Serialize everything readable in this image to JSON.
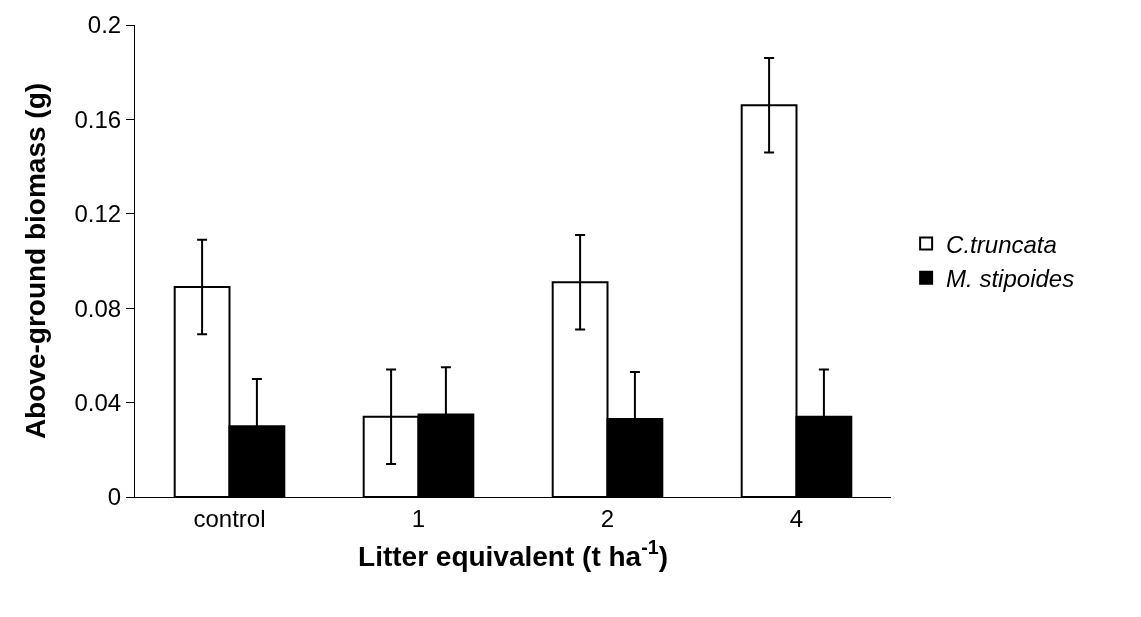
{
  "chart_data": {
    "type": "bar",
    "xlabel": "Litter equivalent (t ha$^{-1}$)",
    "ylabel": "Above-ground biomass (g)",
    "categories": [
      "control",
      "1",
      "2",
      "4"
    ],
    "series": [
      {
        "name": "C.truncata",
        "color": "#ffffff",
        "values": [
          0.089,
          0.034,
          0.091,
          0.166
        ],
        "errors": [
          0.02,
          0.02,
          0.02,
          0.02
        ]
      },
      {
        "name": "M. stipoides",
        "color": "#000000",
        "values": [
          0.03,
          0.035,
          0.033,
          0.034
        ],
        "errors": [
          0.02,
          0.02,
          0.02,
          0.02
        ]
      }
    ],
    "ylim": [
      0,
      0.2
    ],
    "yticks": [
      0,
      0.04,
      0.08,
      0.12,
      0.16,
      0.2
    ],
    "legend": "right"
  }
}
